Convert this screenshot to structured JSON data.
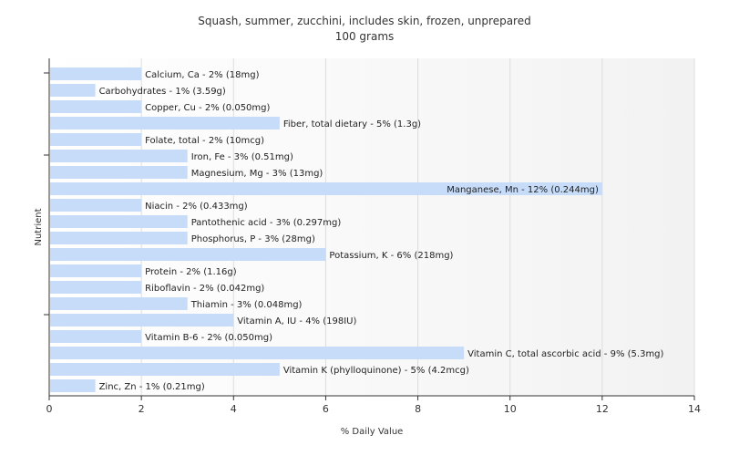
{
  "chart_data": {
    "type": "bar",
    "orientation": "horizontal",
    "title": "Squash, summer, zucchini, includes skin, frozen, unprepared",
    "subtitle": "100 grams",
    "xlabel": "% Daily Value",
    "ylabel": "Nutrient",
    "xlim": [
      0,
      14
    ],
    "xticks": [
      0,
      2,
      4,
      6,
      8,
      10,
      12,
      14
    ],
    "grid": true,
    "bar_color": "#c6dcf9",
    "categories": [
      "Calcium, Ca",
      "Carbohydrates",
      "Copper, Cu",
      "Fiber, total dietary",
      "Folate, total",
      "Iron, Fe",
      "Magnesium, Mg",
      "Manganese, Mn",
      "Niacin",
      "Pantothenic acid",
      "Phosphorus, P",
      "Potassium, K",
      "Protein",
      "Riboflavin",
      "Thiamin",
      "Vitamin A, IU",
      "Vitamin B-6",
      "Vitamin C, total ascorbic acid",
      "Vitamin K (phylloquinone)",
      "Zinc, Zn"
    ],
    "values": [
      2,
      1,
      2,
      5,
      2,
      3,
      3,
      12,
      2,
      3,
      3,
      6,
      2,
      2,
      3,
      4,
      2,
      9,
      5,
      1
    ],
    "labels": [
      "Calcium, Ca - 2% (18mg)",
      "Carbohydrates - 1% (3.59g)",
      "Copper, Cu - 2% (0.050mg)",
      "Fiber, total dietary - 5% (1.3g)",
      "Folate, total - 2% (10mcg)",
      "Iron, Fe - 3% (0.51mg)",
      "Magnesium, Mg - 3% (13mg)",
      "Manganese, Mn - 12% (0.244mg)",
      "Niacin - 2% (0.433mg)",
      "Pantothenic acid - 3% (0.297mg)",
      "Phosphorus, P - 3% (28mg)",
      "Potassium, K - 6% (218mg)",
      "Protein - 2% (1.16g)",
      "Riboflavin - 2% (0.042mg)",
      "Thiamin - 3% (0.048mg)",
      "Vitamin A, IU - 4% (198IU)",
      "Vitamin B-6 - 2% (0.050mg)",
      "Vitamin C, total ascorbic acid - 9% (5.3mg)",
      "Vitamin K (phylloquinone) - 5% (4.2mcg)",
      "Zinc, Zn - 1% (0.21mg)"
    ]
  }
}
